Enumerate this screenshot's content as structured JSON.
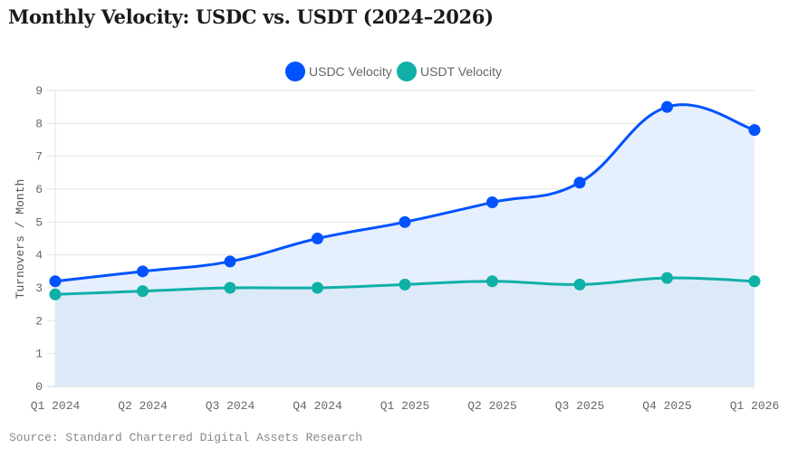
{
  "chart_data": {
    "type": "line",
    "title": "Monthly Velocity: USDC vs. USDT (2024–2026)",
    "xlabel": "",
    "ylabel": "Turnovers / Month",
    "categories": [
      "Q1 2024",
      "Q2 2024",
      "Q3 2024",
      "Q4 2024",
      "Q1 2025",
      "Q2 2025",
      "Q3 2025",
      "Q4 2025",
      "Q1 2026"
    ],
    "ylim": [
      0,
      9
    ],
    "yticks": [
      0,
      1,
      2,
      3,
      4,
      5,
      6,
      7,
      8,
      9
    ],
    "grid": true,
    "legend_position": "top-center",
    "series": [
      {
        "name": "USDC Velocity",
        "color": "#0052ff",
        "fill": "#e6effd",
        "values": [
          3.2,
          3.5,
          3.8,
          4.5,
          5.0,
          5.6,
          6.2,
          8.5,
          7.8
        ]
      },
      {
        "name": "USDT Velocity",
        "color": "#0fb0a5",
        "fill": "#d9e9f7",
        "values": [
          2.8,
          2.9,
          3.0,
          3.0,
          3.1,
          3.2,
          3.1,
          3.3,
          3.2
        ]
      }
    ]
  },
  "source": "Source: Standard Chartered Digital Assets Research"
}
